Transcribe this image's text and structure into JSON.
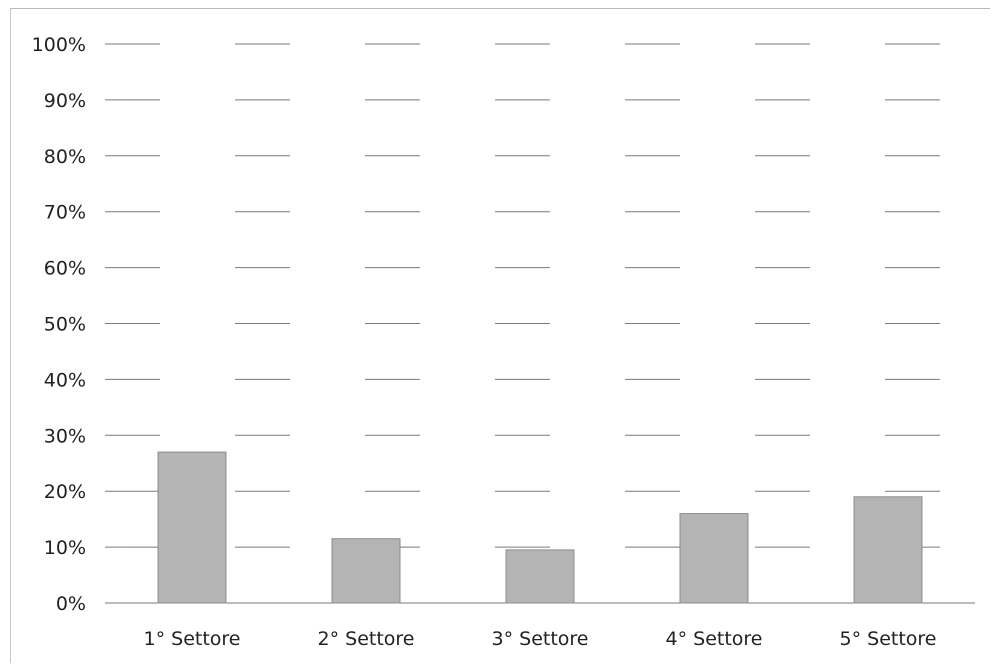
{
  "chart_data": {
    "type": "bar",
    "categories": [
      "1° Settore",
      "2° Settore",
      "3° Settore",
      "4° Settore",
      "5° Settore"
    ],
    "values": [
      0.27,
      0.115,
      0.095,
      0.16,
      0.19
    ],
    "ylim": [
      0,
      1
    ],
    "yticks": [
      "0%",
      "10%",
      "20%",
      "30%",
      "40%",
      "50%",
      "60%",
      "70%",
      "80%",
      "90%",
      "100%"
    ],
    "grid": true,
    "legend": "none",
    "colors": {
      "bar": "#b4b4b4",
      "bar_edge": "#8c8c8c",
      "grid": "#7a7a7a"
    }
  }
}
